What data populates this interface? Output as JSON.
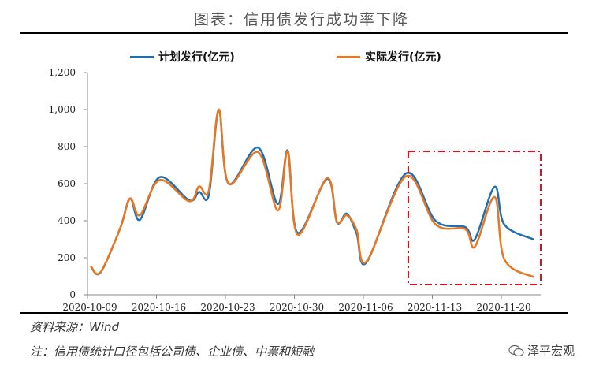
{
  "title": "图表：信用债发行成功率下降",
  "source": "资料来源：Wind",
  "note": "注：信用债统计口径包括公司债、企业债、中票和短融",
  "watermark": "泽平宏观",
  "chart_data": {
    "type": "line",
    "title": "图表：信用债发行成功率下降",
    "xlabel": "",
    "ylabel": "",
    "ylim": [
      0,
      1200
    ],
    "yticks": [
      0,
      200,
      400,
      600,
      800,
      1000,
      1200
    ],
    "ytick_labels": [
      "0",
      "200",
      "400",
      "600",
      "800",
      "1,000",
      "1,200"
    ],
    "xticks": [
      "2020-10-09",
      "2020-10-16",
      "2020-10-23",
      "2020-10-30",
      "2020-11-06",
      "2020-11-13",
      "2020-11-20"
    ],
    "xlim": [
      "2020-10-09",
      "2020-11-24"
    ],
    "grid": false,
    "legend": "top",
    "annotation": "red dash-dot box highlighting 2020-11-10 to 2020-11-23",
    "x": [
      "2020-10-09",
      "2020-10-10",
      "2020-10-12",
      "2020-10-13",
      "2020-10-14",
      "2020-10-16",
      "2020-10-19",
      "2020-10-20",
      "2020-10-21",
      "2020-10-22",
      "2020-10-23",
      "2020-10-26",
      "2020-10-28",
      "2020-10-29",
      "2020-10-30",
      "2020-11-02",
      "2020-11-03",
      "2020-11-04",
      "2020-11-05",
      "2020-11-06",
      "2020-11-10",
      "2020-11-13",
      "2020-11-16",
      "2020-11-17",
      "2020-11-19",
      "2020-11-20",
      "2020-11-23"
    ],
    "series": [
      {
        "name": "计划发行(亿元)",
        "color": "#1f6fb2",
        "values": [
          155,
          120,
          360,
          520,
          405,
          635,
          510,
          555,
          540,
          1000,
          600,
          795,
          490,
          779,
          335,
          626,
          391,
          438,
          330,
          175,
          655,
          400,
          366,
          300,
          583,
          378,
          298
        ]
      },
      {
        "name": "实际发行(亿元)",
        "color": "#e87722",
        "values": [
          155,
          122,
          360,
          520,
          430,
          620,
          505,
          585,
          565,
          1000,
          600,
          770,
          455,
          775,
          325,
          630,
          395,
          430,
          350,
          180,
          640,
          380,
          355,
          260,
          528,
          190,
          95
        ]
      }
    ]
  }
}
